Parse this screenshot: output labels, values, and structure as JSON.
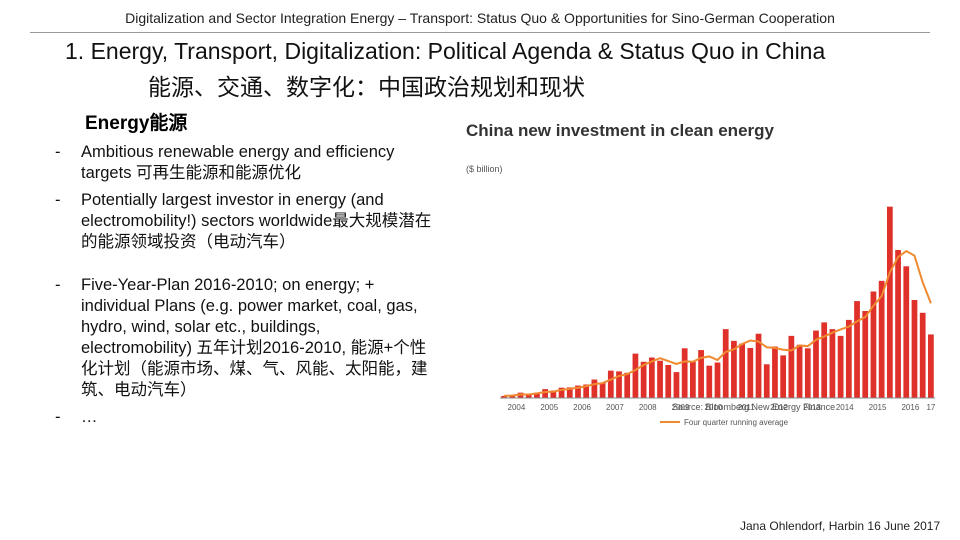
{
  "header": "Digitalization and Sector Integration Energy – Transport: Status Quo & Opportunities for Sino-German Cooperation",
  "heading": {
    "line1": "1.   Energy, Transport, Digitalization: Political Agenda & Status Quo in China",
    "line2": "能源、交通、数字化：中国政治规划和现状"
  },
  "section": "Energy能源",
  "bullets": [
    "Ambitious renewable energy and efficiency targets 可再生能源和能源优化",
    "Potentially largest investor in energy (and electromobility!) sectors worldwide最大规模潜在的能源领域投资（电动汽车）",
    "Five-Year-Plan 2016-2010; on energy; + individual Plans (e.g. power market, coal, gas, hydro, wind, solar etc., buildings, electromobility) 五年计划2016-2010, 能源+个性化计划（能源市场、煤、气、风能、太阳能，建筑、电动汽车）",
    "…"
  ],
  "chart_data": {
    "type": "bar",
    "title": "China new investment in clean energy",
    "subtitle": "($ billion)",
    "source": "Source: Bloomberg New Energy Finance",
    "color": "#e0302a",
    "categories": [
      "2004",
      null,
      null,
      null,
      "2005",
      null,
      null,
      null,
      "2006",
      null,
      null,
      null,
      "2007",
      null,
      null,
      null,
      "2008",
      null,
      null,
      null,
      "2009",
      null,
      null,
      null,
      "2010",
      null,
      null,
      null,
      "2011",
      null,
      null,
      null,
      "2012",
      null,
      null,
      null,
      "2013",
      null,
      null,
      null,
      "2014",
      null,
      null,
      null,
      "2015",
      null,
      null,
      null,
      "2016",
      null,
      null,
      null,
      "17"
    ],
    "values": [
      0.6,
      0.8,
      1.5,
      1.2,
      1.5,
      2.5,
      2.1,
      2.9,
      3.0,
      3.5,
      3.8,
      5.2,
      4.3,
      7.7,
      7.5,
      7.1,
      12.5,
      10.2,
      11.4,
      10.5,
      9.3,
      7.3,
      14.0,
      10.2,
      13.5,
      9.1,
      10.0,
      19.4,
      16.1,
      15.3,
      14.1,
      18.1,
      9.5,
      14.5,
      12.0,
      17.5,
      15.0,
      14.0,
      19.0,
      21.3,
      19.4,
      17.5,
      22.0,
      27.3,
      24.5,
      30.0,
      33.0,
      53.9,
      41.7,
      37.1,
      27.6,
      24.0,
      17.9
    ],
    "line": {
      "name": "Four quarter running average",
      "color": "#f08a30",
      "values": [
        0.6,
        0.7,
        1.0,
        1.0,
        1.3,
        1.7,
        1.8,
        2.3,
        2.6,
        2.9,
        3.3,
        3.9,
        4.2,
        5.2,
        6.2,
        6.7,
        7.9,
        9.3,
        10.3,
        11.2,
        10.4,
        9.6,
        10.3,
        10.2,
        11.3,
        11.7,
        10.7,
        13.0,
        13.7,
        15.2,
        16.2,
        15.9,
        14.3,
        14.1,
        13.6,
        13.4,
        14.8,
        14.6,
        16.4,
        17.3,
        18.4,
        19.3,
        20.1,
        21.6,
        22.8,
        26.0,
        28.7,
        35.4,
        39.7,
        41.4,
        40.1,
        32.6,
        26.7
      ]
    },
    "ylim": [
      0,
      60
    ]
  },
  "footer": "Jana Ohlendorf, Harbin 16 June 2017"
}
